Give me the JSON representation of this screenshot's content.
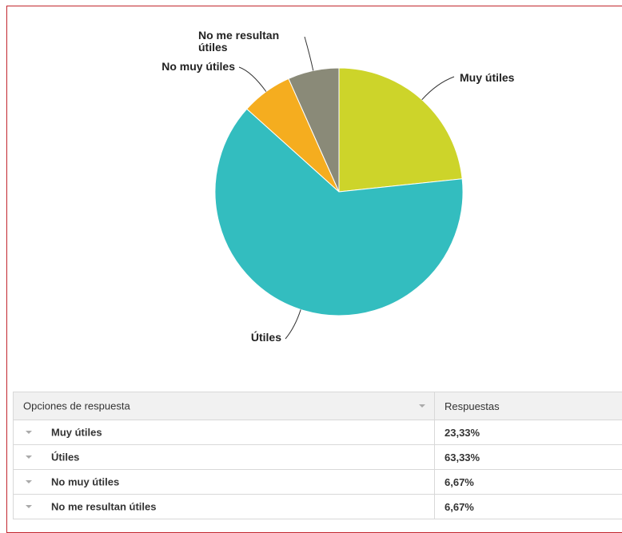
{
  "chart_data": {
    "type": "pie",
    "categories": [
      "Muy útiles",
      "Útiles",
      "No muy útiles",
      "No me resultan útiles"
    ],
    "values": [
      23.33,
      63.33,
      6.67,
      6.67
    ],
    "value_labels": [
      "23,33%",
      "63,33%",
      "6,67%",
      "6,67%"
    ],
    "colors": [
      "#cdd42a",
      "#33bdbf",
      "#f5ad1f",
      "#8a8a78"
    ]
  },
  "table": {
    "headers": [
      "Opciones de respuesta",
      "Respuestas"
    ]
  }
}
